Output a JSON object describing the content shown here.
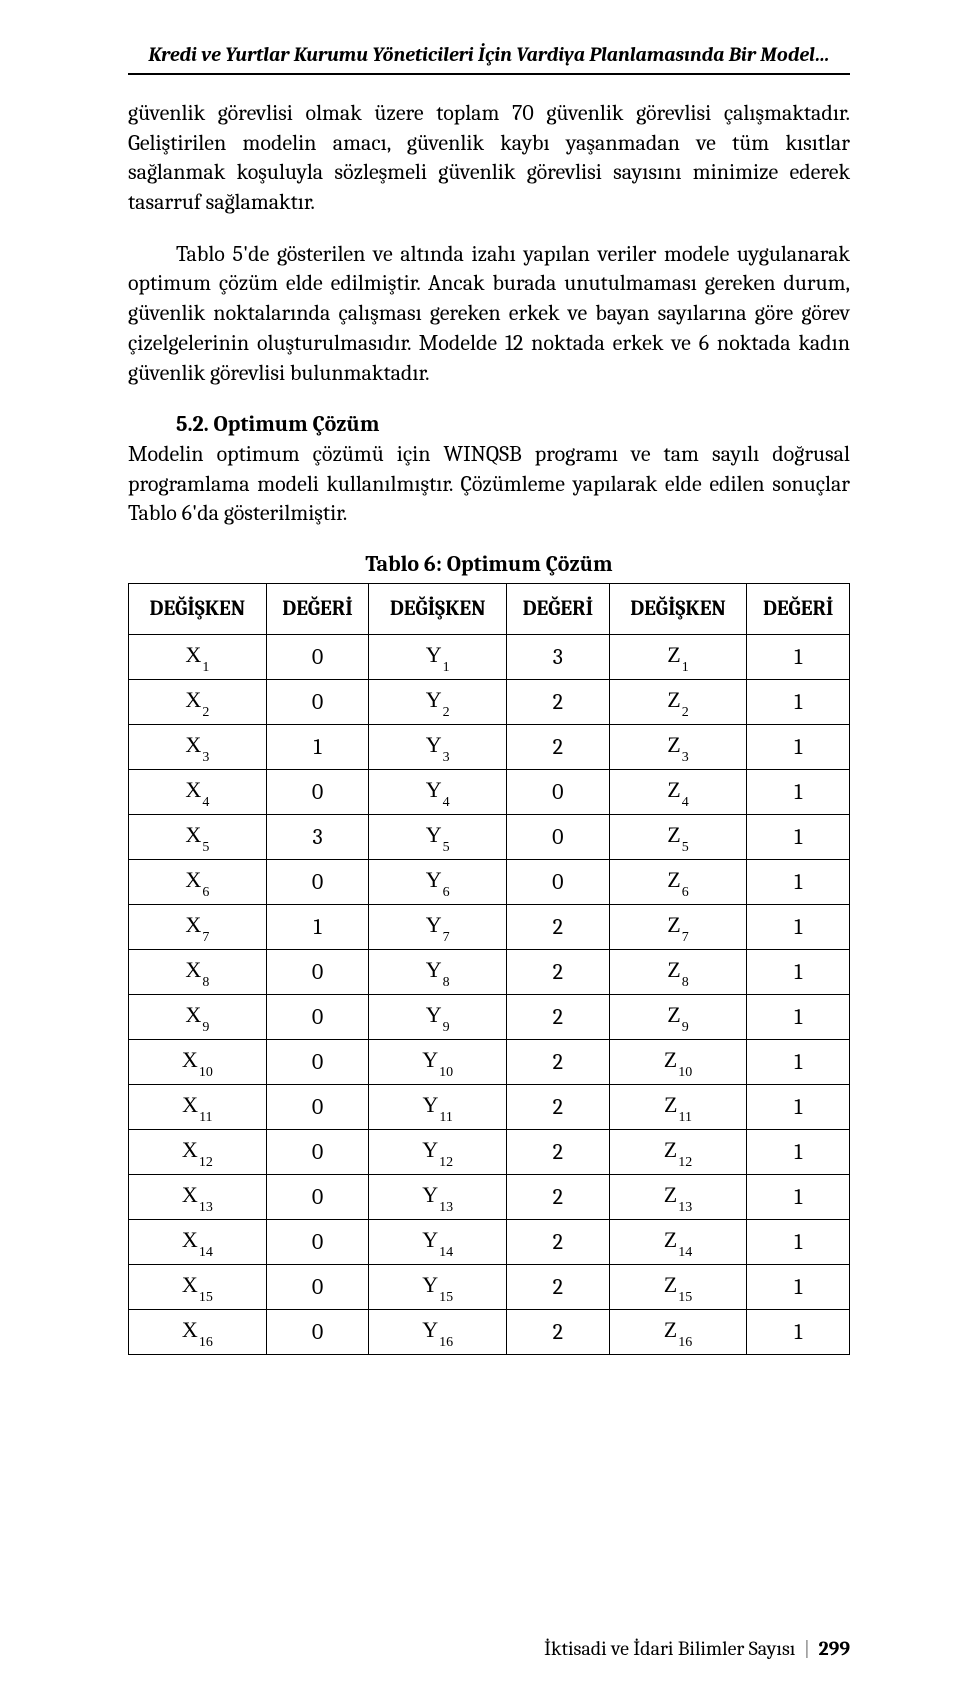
{
  "running_head_line1": "Kredi ve Yurtlar Kurumu Yöneticileri İçin Vardiya Planlamasında Bir Model…",
  "paragraph1": "güvenlik görevlisi olmak üzere toplam 70 güvenlik görevlisi çalışmaktadır. Geliştirilen modelin amacı, güvenlik kaybı yaşanmadan ve tüm kısıtlar sağlanmak koşuluyla sözleşmeli güvenlik görevlisi sayısını minimize ederek tasarruf sağlamaktır.",
  "paragraph2": "Tablo 5'de gösterilen ve altında izahı yapılan veriler modele uygulanarak optimum çözüm elde edilmiştir. Ancak burada unutulmaması gereken durum, güvenlik noktalarında çalışması gereken erkek ve bayan sayılarına göre görev çizelgelerinin oluşturulmasıdır. Modelde 12 noktada erkek ve 6 noktada kadın güvenlik görevlisi bulunmaktadır.",
  "section_label": "5.2. Optimum Çözüm",
  "paragraph3": "Modelin optimum çözümü için WINQSB programı ve tam sayılı doğrusal programlama modeli kullanılmıştır. Çözümleme yapılarak elde edilen sonuçlar Tablo 6'da gösterilmiştir.",
  "table_title": "Tablo 6: Optimum Çözüm",
  "table": {
    "headers": [
      "DEĞİŞKEN",
      "DEĞERİ",
      "DEĞİŞKEN",
      "DEĞERİ",
      "DEĞİŞKEN",
      "DEĞERİ"
    ],
    "var_letters": [
      "X",
      "Y",
      "Z"
    ],
    "rows": [
      {
        "sub": "1",
        "x": "0",
        "y": "3",
        "z": "1"
      },
      {
        "sub": "2",
        "x": "0",
        "y": "2",
        "z": "1"
      },
      {
        "sub": "3",
        "x": "1",
        "y": "2",
        "z": "1"
      },
      {
        "sub": "4",
        "x": "0",
        "y": "0",
        "z": "1"
      },
      {
        "sub": "5",
        "x": "3",
        "y": "0",
        "z": "1"
      },
      {
        "sub": "6",
        "x": "0",
        "y": "0",
        "z": "1"
      },
      {
        "sub": "7",
        "x": "1",
        "y": "2",
        "z": "1"
      },
      {
        "sub": "8",
        "x": "0",
        "y": "2",
        "z": "1"
      },
      {
        "sub": "9",
        "x": "0",
        "y": "2",
        "z": "1"
      },
      {
        "sub": "10",
        "x": "0",
        "y": "2",
        "z": "1"
      },
      {
        "sub": "11",
        "x": "0",
        "y": "2",
        "z": "1"
      },
      {
        "sub": "12",
        "x": "0",
        "y": "2",
        "z": "1"
      },
      {
        "sub": "13",
        "x": "0",
        "y": "2",
        "z": "1"
      },
      {
        "sub": "14",
        "x": "0",
        "y": "2",
        "z": "1"
      },
      {
        "sub": "15",
        "x": "0",
        "y": "2",
        "z": "1"
      },
      {
        "sub": "16",
        "x": "0",
        "y": "2",
        "z": "1"
      }
    ]
  },
  "footer_label": "İktisadi ve İdari Bilimler Sayısı",
  "footer_page": "299"
}
